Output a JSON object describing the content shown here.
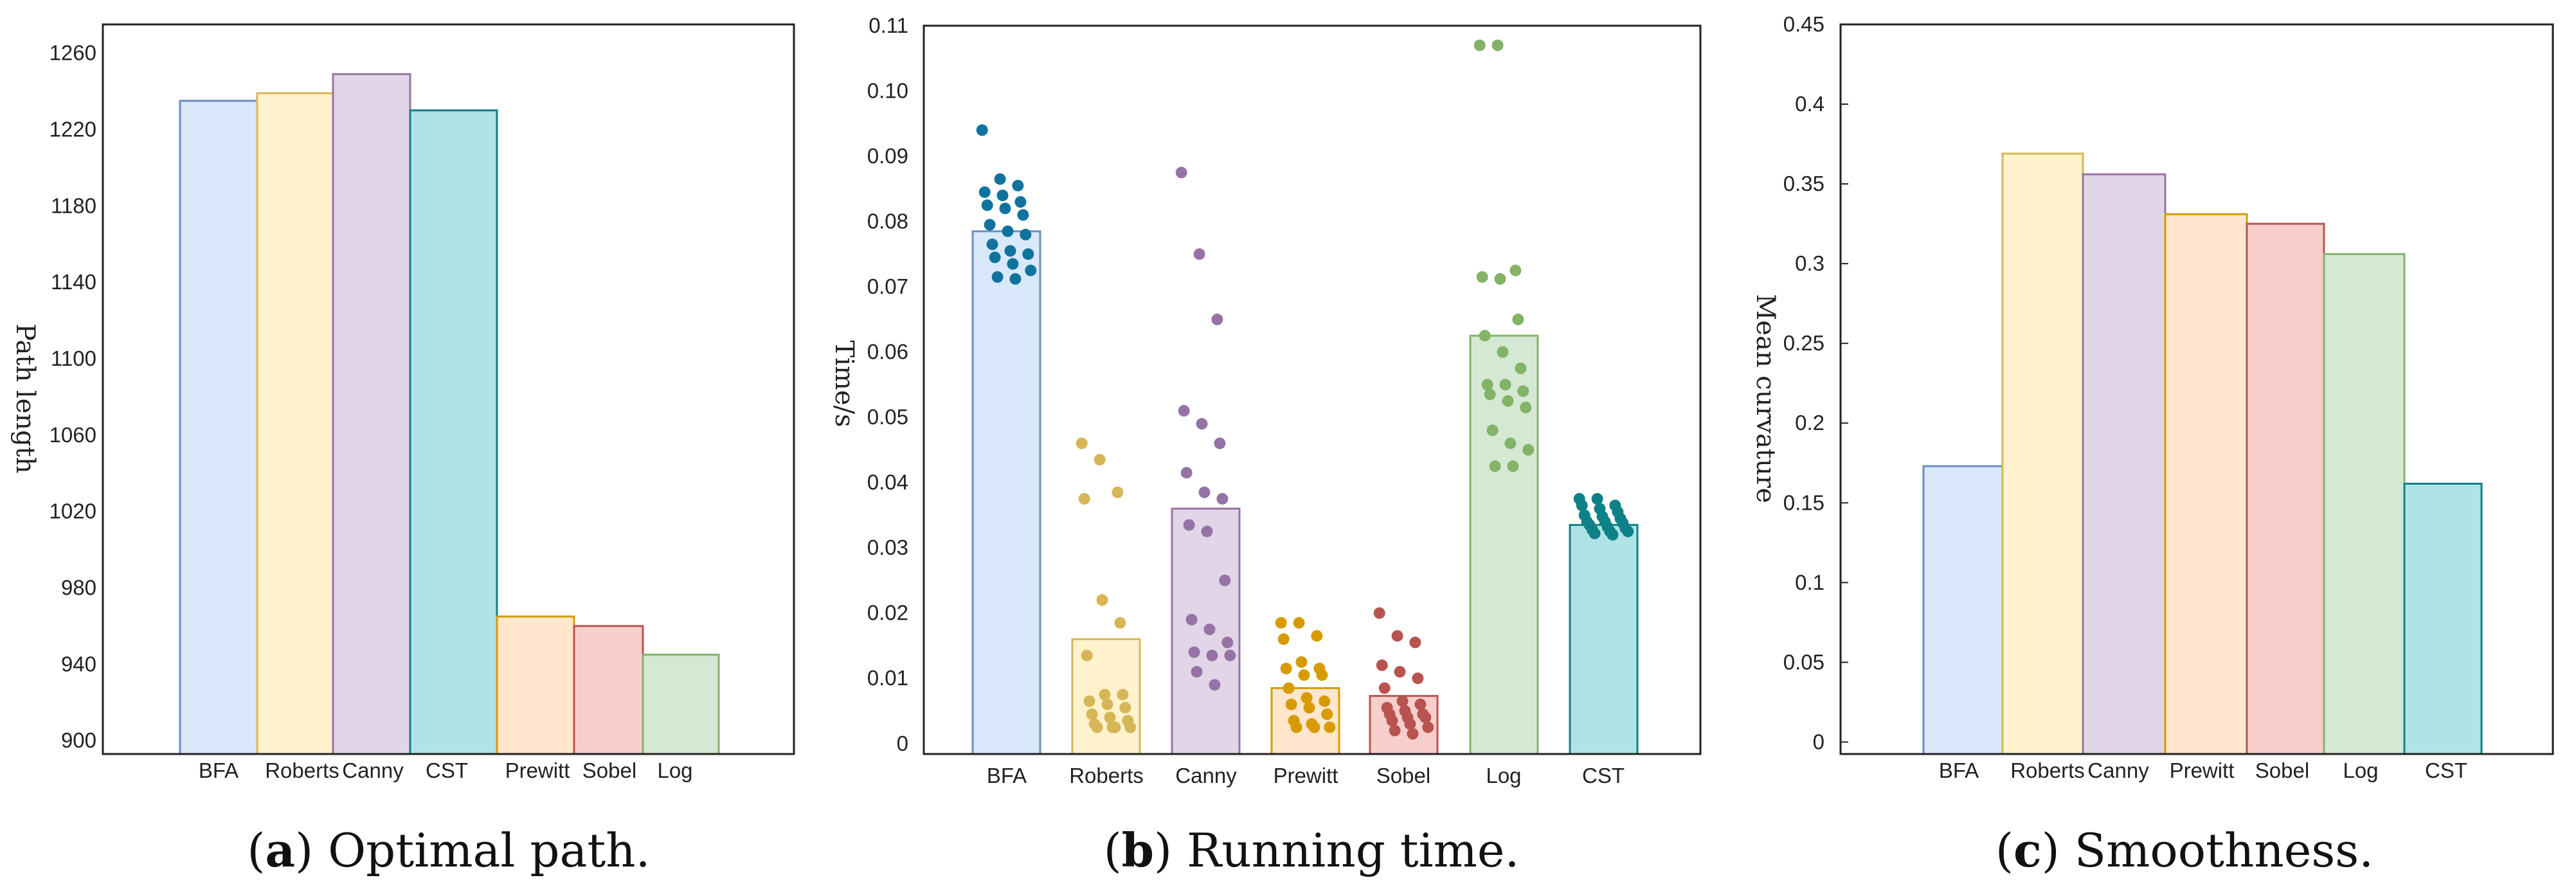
{
  "panels": [
    {
      "id": "a",
      "caption_letter": "a",
      "caption_text": "Optimal path.",
      "chart_data": {
        "type": "bar",
        "title": "",
        "xlabel": "",
        "ylabel": "Path length",
        "categories": [
          "BFA",
          "Roberts",
          "Canny",
          "CST",
          "Prewitt",
          "Sobel",
          "Log"
        ],
        "values": [
          1235,
          1239,
          1249,
          1230,
          965,
          960,
          945
        ],
        "ylim": [
          893,
          1275
        ],
        "yticks": [
          900,
          940,
          980,
          1020,
          1060,
          1100,
          1140,
          1180,
          1220,
          1260
        ],
        "ytick_labels": [
          "900",
          "940",
          "980",
          "1020",
          "1060",
          "1100",
          "1140",
          "1180",
          "1220",
          "1260"
        ],
        "grid": false
      }
    },
    {
      "id": "b",
      "caption_letter": "b",
      "caption_text": "Running time.",
      "chart_data": {
        "type": "bar",
        "title": "",
        "xlabel": "",
        "ylabel": "Time/s",
        "categories": [
          "BFA",
          "Roberts",
          "Canny",
          "Prewitt",
          "Sobel",
          "Log",
          "CST"
        ],
        "values": [
          0.0785,
          0.016,
          0.036,
          0.0085,
          0.0073,
          0.0625,
          0.0335
        ],
        "ylim": [
          -0.0016,
          0.11
        ],
        "yticks": [
          0,
          0.01,
          0.02,
          0.03,
          0.04,
          0.05,
          0.06,
          0.07,
          0.08,
          0.09,
          0.1,
          0.11
        ],
        "ytick_labels": [
          "0",
          "0.01",
          "0.02",
          "0.03",
          "0.04",
          "0.05",
          "0.06",
          "0.07",
          "0.08",
          "0.09",
          "0.10",
          "0.11"
        ],
        "grid": false,
        "points": [
          [
            0.094,
            0.0865,
            0.0855,
            0.0845,
            0.084,
            0.083,
            0.0825,
            0.082,
            0.081,
            0.0795,
            0.0785,
            0.078,
            0.0765,
            0.0755,
            0.075,
            0.0745,
            0.0735,
            0.0725,
            0.0715,
            0.0712
          ],
          [
            0.046,
            0.0435,
            0.0385,
            0.0375,
            0.022,
            0.0185,
            0.0135,
            0.0075,
            0.0075,
            0.0065,
            0.006,
            0.0055,
            0.0045,
            0.004,
            0.0035,
            0.003,
            0.0025,
            0.0025,
            0.0025,
            0.0025
          ],
          [
            0.0875,
            0.075,
            0.065,
            0.051,
            0.049,
            0.046,
            0.0415,
            0.0385,
            0.0375,
            0.0335,
            0.0325,
            0.025,
            0.019,
            0.0175,
            0.0155,
            0.014,
            0.0135,
            0.0135,
            0.011,
            0.009
          ],
          [
            0.0185,
            0.0185,
            0.0165,
            0.016,
            0.0125,
            0.0115,
            0.0115,
            0.0105,
            0.0105,
            0.0085,
            0.007,
            0.0065,
            0.006,
            0.0055,
            0.0045,
            0.0035,
            0.003,
            0.0025,
            0.0025,
            0.0025
          ],
          [
            0.02,
            0.0165,
            0.0155,
            0.012,
            0.011,
            0.01,
            0.0085,
            0.0065,
            0.006,
            0.0055,
            0.005,
            0.0045,
            0.0045,
            0.004,
            0.004,
            0.0035,
            0.003,
            0.0025,
            0.002,
            0.0015
          ],
          [
            0.107,
            0.107,
            0.0725,
            0.0715,
            0.0712,
            0.065,
            0.0625,
            0.06,
            0.0575,
            0.055,
            0.055,
            0.054,
            0.0535,
            0.0525,
            0.0515,
            0.048,
            0.046,
            0.045,
            0.0425,
            0.0425
          ],
          [
            0.0375,
            0.0375,
            0.0365,
            0.0365,
            0.036,
            0.0355,
            0.035,
            0.0348,
            0.0345,
            0.034,
            0.034,
            0.0338,
            0.0335,
            0.0332,
            0.033,
            0.0328,
            0.0325,
            0.0325,
            0.0322,
            0.032
          ]
        ]
      }
    },
    {
      "id": "c",
      "caption_letter": "c",
      "caption_text": "Smoothness.",
      "chart_data": {
        "type": "bar",
        "title": "",
        "xlabel": "",
        "ylabel": "Mean curvature",
        "categories": [
          "BFA",
          "Roberts",
          "Canny",
          "Prewitt",
          "Sobel",
          "Log",
          "CST"
        ],
        "values": [
          0.173,
          0.369,
          0.356,
          0.331,
          0.325,
          0.306,
          0.162
        ],
        "ylim": [
          -0.0075,
          0.45
        ],
        "yticks": [
          0,
          0.05,
          0.1,
          0.15,
          0.2,
          0.25,
          0.3,
          0.35,
          0.4,
          0.45
        ],
        "ytick_labels": [
          "0",
          "0.05",
          "0.1",
          "0.15",
          "0.2",
          "0.25",
          "0.3",
          "0.35",
          "0.4",
          "0.45"
        ],
        "grid": false
      }
    }
  ],
  "colors": {
    "BFA": {
      "fill": "#dae8fc",
      "stroke": "#6c8ebf",
      "dot": "#10739e"
    },
    "Roberts": {
      "fill": "#fff2cc",
      "stroke": "#d6b656",
      "dot": "#d6b656"
    },
    "Canny": {
      "fill": "#e1d5e7",
      "stroke": "#9673a6",
      "dot": "#9673a6"
    },
    "CST": {
      "fill": "#b0e3e6",
      "stroke": "#0e8088",
      "dot": "#0e8088"
    },
    "Prewitt": {
      "fill": "#ffe6cc",
      "stroke": "#d79b00",
      "dot": "#d79b00"
    },
    "Sobel": {
      "fill": "#f8cecc",
      "stroke": "#b85450",
      "dot": "#b85450"
    },
    "Log": {
      "fill": "#d5e8d4",
      "stroke": "#82b366",
      "dot": "#82b366"
    }
  }
}
